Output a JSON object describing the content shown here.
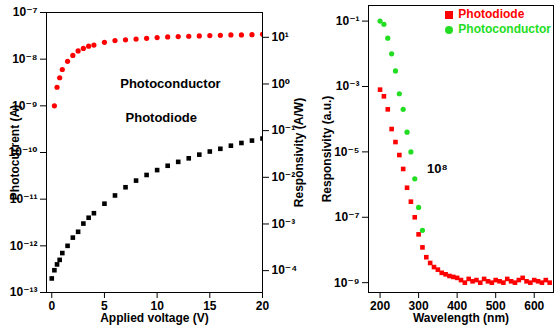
{
  "chart_data": [
    {
      "type": "scatter",
      "xlabel": "Applied voltage (V)",
      "ylabel": "Photocurrent (A)",
      "y2label": "Responsivity (A/W)",
      "log": "y",
      "x": [
        0,
        0.25,
        0.5,
        0.75,
        1,
        1.5,
        2,
        2.5,
        3,
        3.5,
        4,
        5,
        6,
        7,
        8,
        9,
        10,
        11,
        12,
        13,
        14,
        15,
        16,
        17,
        18,
        19,
        20
      ],
      "series": [
        {
          "name": "Photoconductor",
          "color": "#ff0000",
          "marker": "circle",
          "values": [
            null,
            1e-09,
            2.5e-09,
            4e-09,
            6e-09,
            9e-09,
            1.2e-08,
            1.5e-08,
            1.7e-08,
            1.9e-08,
            2e-08,
            2.3e-08,
            2.5e-08,
            2.6e-08,
            2.7e-08,
            2.8e-08,
            2.9e-08,
            3e-08,
            3.05e-08,
            3.1e-08,
            3.15e-08,
            3.2e-08,
            3.25e-08,
            3.3e-08,
            3.3e-08,
            3.35e-08,
            3.4e-08
          ]
        },
        {
          "name": "Photodiode",
          "color": "#000000",
          "marker": "square",
          "values": [
            2e-13,
            3e-13,
            4e-13,
            5e-13,
            7e-13,
            1e-12,
            1.5e-12,
            2e-12,
            3e-12,
            4e-12,
            5e-12,
            8e-12,
            1.2e-11,
            1.8e-11,
            2.5e-11,
            3.3e-11,
            4.2e-11,
            5.2e-11,
            6.3e-11,
            7.5e-11,
            9e-11,
            1.05e-10,
            1.2e-10,
            1.4e-10,
            1.6e-10,
            1.8e-10,
            2e-10
          ]
        }
      ],
      "xlim": [
        -0.5,
        20
      ],
      "xticks": [
        0,
        5,
        10,
        15,
        20
      ],
      "ylim": [
        1e-13,
        1e-07
      ],
      "yticks": [
        {
          "value": 1e-13,
          "label": "10⁻¹³"
        },
        {
          "value": 1e-12,
          "label": "10⁻¹²"
        },
        {
          "value": 1e-11,
          "label": "10⁻¹¹"
        },
        {
          "value": 1e-10,
          "label": "10⁻¹⁰"
        },
        {
          "value": 1e-09,
          "label": "10⁻⁹"
        },
        {
          "value": 1e-08,
          "label": "10⁻⁸"
        },
        {
          "value": 1e-07,
          "label": "10⁻⁷"
        }
      ],
      "y2lim": [
        3.4e-05,
        34
      ],
      "y2ticks": [
        {
          "value": 0.0001,
          "label": "10⁻⁴"
        },
        {
          "value": 0.001,
          "label": "10⁻³"
        },
        {
          "value": 0.01,
          "label": "10⁻²"
        },
        {
          "value": 0.1,
          "label": "10⁻¹"
        },
        {
          "value": 1,
          "label": "10⁰"
        },
        {
          "value": 10,
          "label": "10¹"
        }
      ],
      "annotations": [
        {
          "text": "Photoconductor",
          "x": 6.5,
          "y": 3e-09
        },
        {
          "text": "Photodiode",
          "x": 7,
          "y": 5.5e-10
        }
      ],
      "grid": false
    },
    {
      "type": "scatter",
      "xlabel": "Wavelength (nm)",
      "ylabel": "Responsivity (a.u.)",
      "log": "y",
      "x": [
        200,
        210,
        220,
        230,
        240,
        250,
        260,
        270,
        280,
        290,
        300,
        310,
        320,
        330,
        340,
        350,
        360,
        370,
        380,
        390,
        400,
        410,
        420,
        430,
        440,
        450,
        460,
        470,
        480,
        490,
        500,
        510,
        520,
        530,
        540,
        550,
        560,
        570,
        580,
        590,
        600,
        610,
        620,
        630,
        640
      ],
      "series": [
        {
          "name": "Photodiode",
          "color": "#ff0000",
          "marker": "square",
          "values": [
            0.0008,
            0.0005,
            0.0002,
            5e-05,
            2e-05,
            8e-06,
            3e-06,
            8e-07,
            3e-07,
            1e-07,
            3e-08,
            1.2e-08,
            6e-09,
            4e-09,
            3e-09,
            2.5e-09,
            2e-09,
            1.8e-09,
            1.6e-09,
            1.5e-09,
            1.4e-09,
            1.2e-09,
            1e-09,
            1.3e-09,
            1.1e-09,
            1.2e-09,
            1e-09,
            1.3e-09,
            1.1e-09,
            1e-09,
            1.2e-09,
            1.1e-09,
            1e-09,
            1.3e-09,
            1.1e-09,
            1e-09,
            1.2e-09,
            1.4e-09,
            1.1e-09,
            1e-09,
            1.2e-09,
            1.1e-09,
            1e-09,
            1.2e-09,
            1e-09
          ]
        },
        {
          "name": "Photoconductor",
          "color": "#22dd22",
          "marker": "circle",
          "values": [
            0.1,
            0.08,
            0.03,
            0.01,
            0.003,
            0.0006,
            0.0002,
            4e-05,
            1e-05,
            1.5e-06,
            2e-07,
            4e-08,
            null,
            null,
            null,
            null,
            null,
            null,
            null,
            null,
            null,
            null,
            null,
            null,
            null,
            null,
            null,
            null,
            null,
            null,
            null,
            null,
            null,
            null,
            null,
            null,
            null,
            null,
            null,
            null,
            null,
            null,
            null,
            null,
            null
          ]
        }
      ],
      "xlim": [
        170,
        650
      ],
      "xticks": [
        200,
        300,
        400,
        500,
        600
      ],
      "ylim": [
        5e-10,
        0.3
      ],
      "yticks": [
        {
          "value": 1e-09,
          "label": "10⁻⁹"
        },
        {
          "value": 1e-07,
          "label": "10⁻⁷"
        },
        {
          "value": 1e-05,
          "label": "10⁻⁵"
        },
        {
          "value": 0.001,
          "label": "10⁻³"
        },
        {
          "value": 0.1,
          "label": "10⁻¹"
        }
      ],
      "annotations": [
        {
          "text": "10⁸",
          "x": 322,
          "y": 3e-06
        }
      ],
      "legend": "top-right",
      "grid": false
    }
  ]
}
